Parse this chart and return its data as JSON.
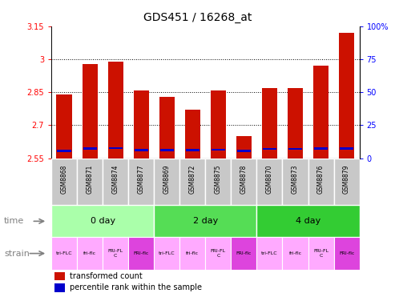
{
  "title": "GDS451 / 16268_at",
  "samples": [
    "GSM8868",
    "GSM8871",
    "GSM8874",
    "GSM8877",
    "GSM8869",
    "GSM8872",
    "GSM8875",
    "GSM8878",
    "GSM8870",
    "GSM8873",
    "GSM8876",
    "GSM8879"
  ],
  "red_values": [
    2.84,
    2.98,
    2.99,
    2.86,
    2.83,
    2.77,
    2.86,
    2.65,
    2.87,
    2.87,
    2.97,
    3.12
  ],
  "blue_values": [
    2.578,
    2.588,
    2.591,
    2.582,
    2.581,
    2.581,
    2.584,
    2.579,
    2.587,
    2.587,
    2.589,
    2.589
  ],
  "ymin": 2.55,
  "ymax": 3.15,
  "yticks": [
    2.55,
    2.7,
    2.85,
    3.0,
    3.15
  ],
  "ytick_labels": [
    "2.55",
    "2.7",
    "2.85",
    "3",
    "3.15"
  ],
  "right_ytick_labels": [
    "0",
    "25",
    "50",
    "75",
    "100%"
  ],
  "gridlines": [
    2.7,
    2.85,
    3.0
  ],
  "time_groups": [
    {
      "label": "0 day",
      "start": 0,
      "end": 3,
      "color": "#aaffaa"
    },
    {
      "label": "2 day",
      "start": 4,
      "end": 7,
      "color": "#55dd55"
    },
    {
      "label": "4 day",
      "start": 8,
      "end": 11,
      "color": "#33cc33"
    }
  ],
  "strain_labels": [
    "tri-FLC",
    "fri-flc",
    "FRI-FL\nC",
    "FRI-flc",
    "tri-FLC",
    "fri-flc",
    "FRI-FL\nC",
    "FRI-flc",
    "tri-FLC",
    "fri-flc",
    "FRI-FL\nC",
    "FRI-flc"
  ],
  "strain_colors": [
    "#ffaaff",
    "#ffaaff",
    "#ffaaff",
    "#dd44dd",
    "#ffaaff",
    "#ffaaff",
    "#ffaaff",
    "#dd44dd",
    "#ffaaff",
    "#ffaaff",
    "#ffaaff",
    "#dd44dd"
  ],
  "bar_color": "#cc1100",
  "blue_color": "#0000cc",
  "bg_color": "#c8c8c8",
  "legend_red": "transformed count",
  "legend_blue": "percentile rank within the sample"
}
